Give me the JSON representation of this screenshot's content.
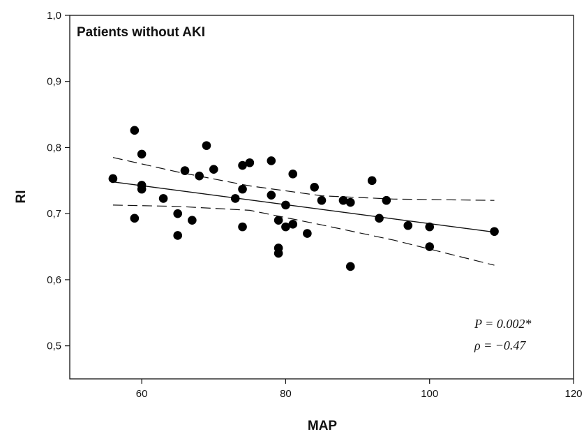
{
  "chart_data": {
    "type": "scatter",
    "title": "Patients without AKI",
    "xlabel": "MAP",
    "ylabel": "RI",
    "xlim": [
      50,
      120
    ],
    "ylim": [
      0.45,
      1.0
    ],
    "x_ticks": [
      60,
      80,
      100,
      120
    ],
    "x_tick_labels": [
      "60",
      "80",
      "100",
      "120"
    ],
    "y_ticks": [
      0.5,
      0.6,
      0.7,
      0.8,
      0.9,
      1.0
    ],
    "y_tick_labels": [
      "0,5",
      "0,6",
      "0,7",
      "0,8",
      "0,9",
      "1,0"
    ],
    "grid": false,
    "points": [
      {
        "x": 56,
        "y": 0.753
      },
      {
        "x": 59,
        "y": 0.826
      },
      {
        "x": 59,
        "y": 0.693
      },
      {
        "x": 60,
        "y": 0.79
      },
      {
        "x": 60,
        "y": 0.743
      },
      {
        "x": 60,
        "y": 0.737
      },
      {
        "x": 63,
        "y": 0.723
      },
      {
        "x": 65,
        "y": 0.7
      },
      {
        "x": 65,
        "y": 0.667
      },
      {
        "x": 66,
        "y": 0.765
      },
      {
        "x": 67,
        "y": 0.69
      },
      {
        "x": 68,
        "y": 0.757
      },
      {
        "x": 69,
        "y": 0.803
      },
      {
        "x": 70,
        "y": 0.767
      },
      {
        "x": 73,
        "y": 0.723
      },
      {
        "x": 74,
        "y": 0.773
      },
      {
        "x": 74,
        "y": 0.737
      },
      {
        "x": 74,
        "y": 0.68
      },
      {
        "x": 75,
        "y": 0.777
      },
      {
        "x": 78,
        "y": 0.78
      },
      {
        "x": 78,
        "y": 0.728
      },
      {
        "x": 79,
        "y": 0.69
      },
      {
        "x": 79,
        "y": 0.648
      },
      {
        "x": 79,
        "y": 0.64
      },
      {
        "x": 80,
        "y": 0.713
      },
      {
        "x": 80,
        "y": 0.68
      },
      {
        "x": 81,
        "y": 0.76
      },
      {
        "x": 81,
        "y": 0.684
      },
      {
        "x": 83,
        "y": 0.67
      },
      {
        "x": 84,
        "y": 0.74
      },
      {
        "x": 85,
        "y": 0.72
      },
      {
        "x": 88,
        "y": 0.72
      },
      {
        "x": 89,
        "y": 0.717
      },
      {
        "x": 89,
        "y": 0.62
      },
      {
        "x": 92,
        "y": 0.75
      },
      {
        "x": 93,
        "y": 0.693
      },
      {
        "x": 94,
        "y": 0.72
      },
      {
        "x": 97,
        "y": 0.682
      },
      {
        "x": 100,
        "y": 0.68
      },
      {
        "x": 100,
        "y": 0.65
      },
      {
        "x": 109,
        "y": 0.673
      }
    ],
    "regression_line": {
      "x": [
        56,
        109
      ],
      "y": [
        0.748,
        0.672
      ]
    },
    "ci_upper": {
      "x": [
        56,
        65,
        75,
        85,
        95,
        109
      ],
      "y": [
        0.785,
        0.763,
        0.742,
        0.727,
        0.722,
        0.72
      ]
    },
    "ci_lower": {
      "x": [
        56,
        65,
        75,
        85,
        95,
        109
      ],
      "y": [
        0.713,
        0.711,
        0.705,
        0.683,
        0.66,
        0.622
      ]
    },
    "annotations": {
      "p_value": "P = 0.002*",
      "rho": "ρ = −0.47"
    }
  }
}
